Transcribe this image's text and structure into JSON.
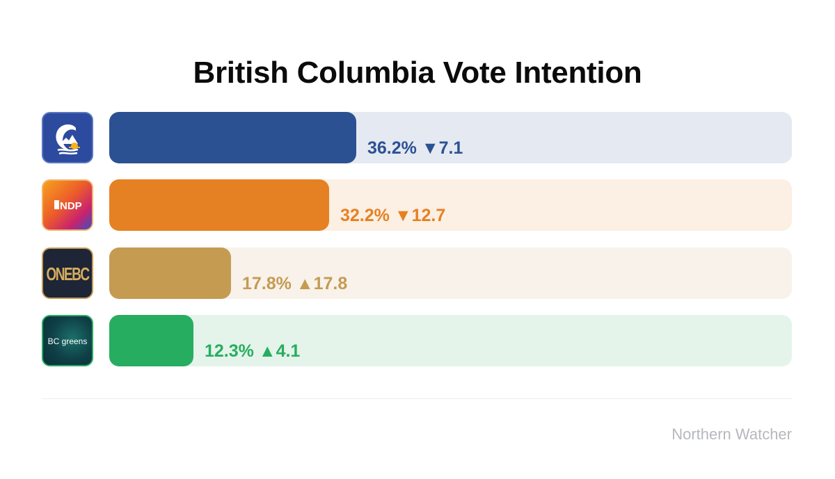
{
  "chart_data": {
    "type": "bar",
    "title": "British Columbia Vote Intention",
    "xlim": [
      0,
      100
    ],
    "series": [
      {
        "party_logo": "bc-conservative-logo",
        "value": 36.2,
        "change": -7.1,
        "label": "36.2% ▼7.1",
        "bar_color": "#2c5192",
        "track_color": "#e4e9f2",
        "text_color": "#2c5192"
      },
      {
        "party_logo": "bc-ndp-logo",
        "logo_text": "NDP",
        "value": 32.2,
        "change": -12.7,
        "label": "32.2% ▼12.7",
        "bar_color": "#e58123",
        "track_color": "#fcefe3",
        "text_color": "#e58123"
      },
      {
        "party_logo": "onebc-logo",
        "logo_text": "ONEBC",
        "value": 17.8,
        "change": 17.8,
        "label": "17.8% ▲17.8",
        "bar_color": "#c59b52",
        "track_color": "#f8f2ea",
        "text_color": "#c59b52"
      },
      {
        "party_logo": "bc-greens-logo",
        "logo_text": "BC greens",
        "value": 12.3,
        "change": 4.1,
        "label": "12.3% ▲4.1",
        "bar_color": "#27ad5f",
        "track_color": "#e4f4ea",
        "text_color": "#27ad5f"
      }
    ]
  },
  "footer": {
    "source": "Northern Watcher"
  }
}
